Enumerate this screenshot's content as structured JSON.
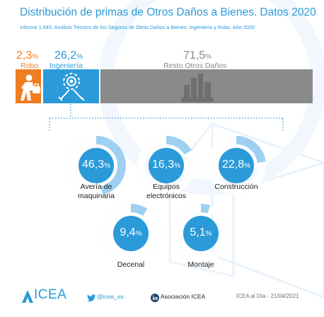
{
  "title": "Distribución de primas de Otros Daños a Bienes. Datos 2020",
  "subtitle": "Informe 1.645: Análisis Técnico de los Seguros de Otros Daños a Bienes: Ingeniería y Robo. Año 2020",
  "colors": {
    "accent": "#2a9ad8",
    "robo": "#ef7d22",
    "resto": "#8a8a8a",
    "donut_ring": "#9fd0f1",
    "donut_center": "#2a9ad8"
  },
  "chart_data": [
    {
      "type": "bar",
      "orientation": "horizontal-stacked",
      "categories": [
        "Robo",
        "Ingeniería",
        "Resto Otros Daños"
      ],
      "values": [
        2.3,
        26.2,
        71.5
      ],
      "value_labels": [
        "2,3",
        "26,2",
        "71,5"
      ],
      "unit": "%",
      "icons": [
        "thief-icon",
        "gears-tools-icon",
        "city-buildings-icon"
      ]
    },
    {
      "type": "pie",
      "categories": [
        "Avería de maquinaria",
        "Equipos electrónicos",
        "Construcción",
        "Decenal",
        "Montaje"
      ],
      "label_lines": [
        [
          "Avería de",
          "maquinaria"
        ],
        [
          "Equipos",
          "electrónicos"
        ],
        [
          "Construcción"
        ],
        [
          "Decenal"
        ],
        [
          "Montaje"
        ]
      ],
      "values": [
        46.3,
        16.3,
        22.8,
        9.4,
        5.1
      ],
      "value_labels": [
        "46,3",
        "16,3",
        "22,8",
        "9,4",
        "5,1"
      ],
      "unit": "%"
    }
  ],
  "footer": {
    "brand": "ICEA",
    "twitter": "@icea_es",
    "linkedin": "Asociación ICEA",
    "credit": "ICEA al Día - 21/04/2021"
  }
}
